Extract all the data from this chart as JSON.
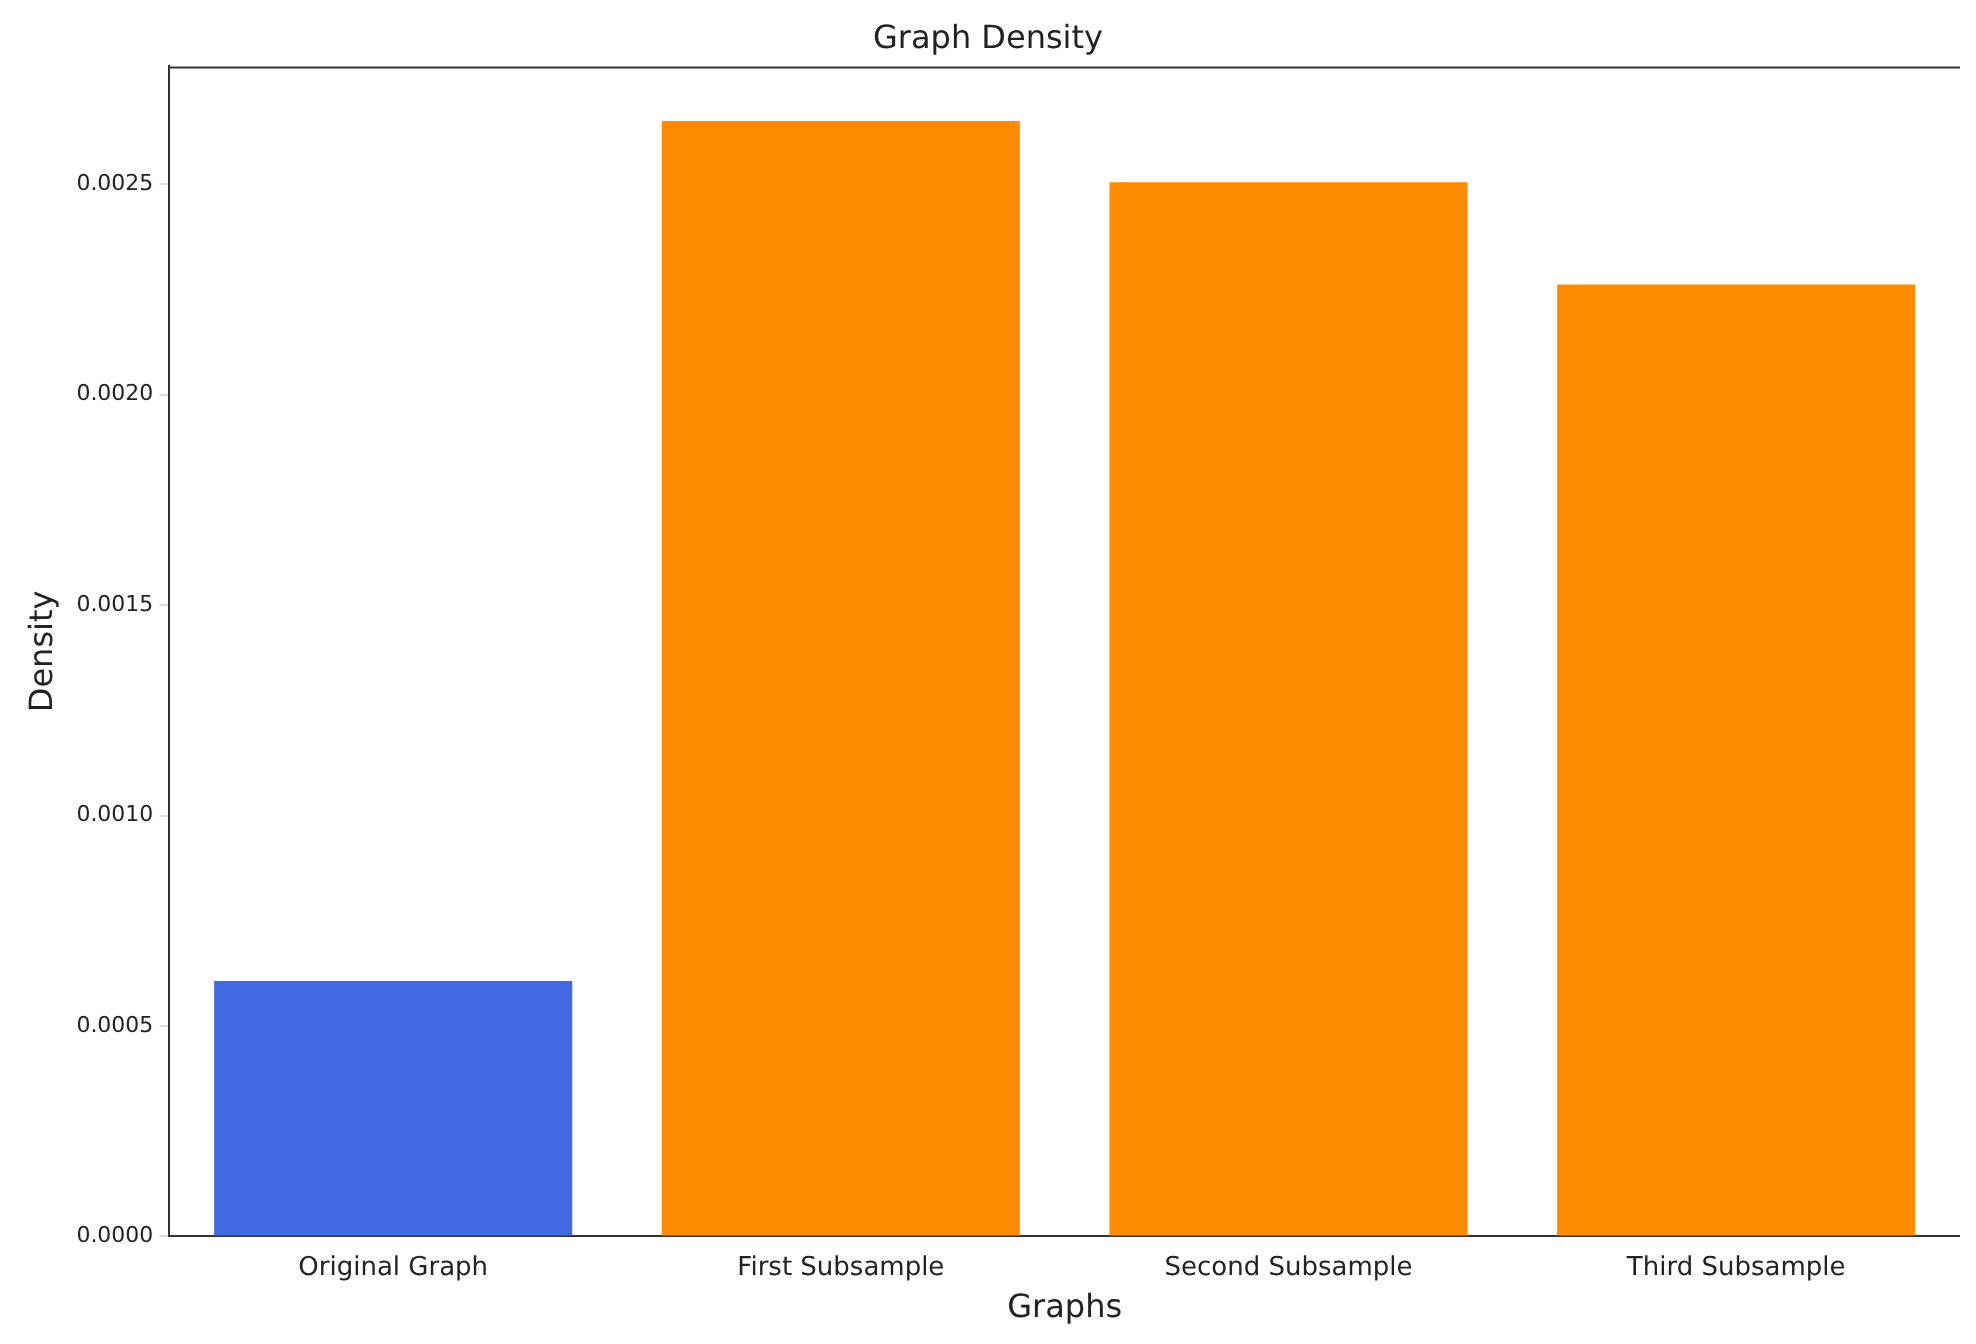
{
  "chart_data": {
    "type": "bar",
    "title": "Graph Density",
    "xlabel": "Graphs",
    "ylabel": "Density",
    "categories": [
      "Original Graph",
      "First Subsample",
      "Second Subsample",
      "Third Subsample"
    ],
    "values": [
      0.000607,
      0.00265,
      0.002505,
      0.002262
    ],
    "colors": [
      "#4169e1",
      "#ff8c00",
      "#ff8c00",
      "#ff8c00"
    ],
    "ylim": [
      0,
      0.00278
    ],
    "yticks": [
      {
        "value": 0,
        "label": "0.0000"
      },
      {
        "value": 0.0005,
        "label": "0.0005"
      },
      {
        "value": 0.001,
        "label": "0.0010"
      },
      {
        "value": 0.0015,
        "label": "0.0015"
      },
      {
        "value": 0.002,
        "label": "0.0020"
      },
      {
        "value": 0.0025,
        "label": "0.0025"
      }
    ],
    "grid": false,
    "legend": false
  }
}
